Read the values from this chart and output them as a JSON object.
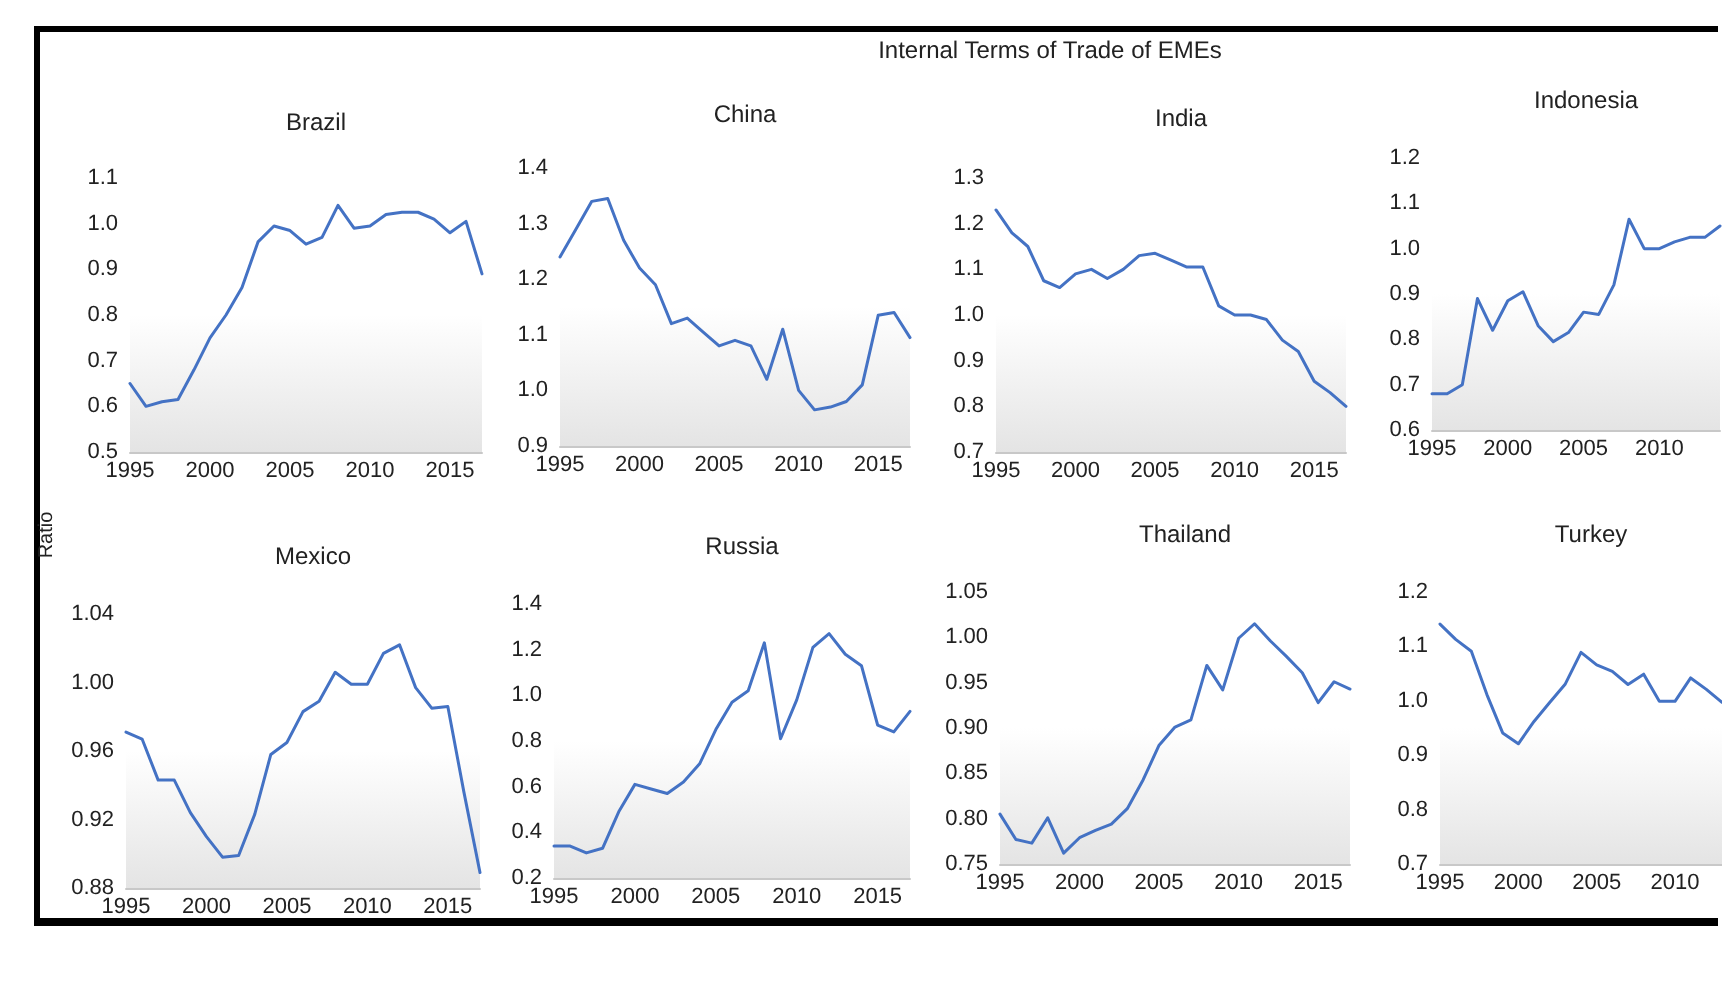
{
  "chart_data": [
    {
      "type": "line",
      "title": "Brazil",
      "ylabel": "Ratio",
      "annotations": [
        "Internal Terms of Trade of EMEs"
      ],
      "x": [
        1995,
        1996,
        1997,
        1998,
        1999,
        2000,
        2001,
        2002,
        2003,
        2004,
        2005,
        2006,
        2007,
        2008,
        2009,
        2010,
        2011,
        2012,
        2013,
        2014,
        2015,
        2016,
        2017
      ],
      "xlim": [
        1995,
        2017
      ],
      "xticks": [
        1995,
        2000,
        2005,
        2010,
        2015
      ],
      "ylim": [
        0.5,
        1.1
      ],
      "yticks": [
        {
          "value": 0.5,
          "label": "0.5"
        },
        {
          "value": 0.6,
          "label": "0.6"
        },
        {
          "value": 0.7,
          "label": "0.7"
        },
        {
          "value": 0.8,
          "label": "0.8"
        },
        {
          "value": 0.9,
          "label": "0.9"
        },
        {
          "value": 1,
          "label": "1.0"
        },
        {
          "value": 1.1,
          "label": "1.1"
        }
      ],
      "series": [
        {
          "color": "#4472c4",
          "values": [
            0.65,
            0.6,
            0.61,
            0.615,
            0.68,
            0.75,
            0.8,
            0.86,
            0.96,
            0.995,
            0.985,
            0.955,
            0.97,
            1.04,
            0.99,
            0.995,
            1.02,
            1.025,
            1.025,
            1.01,
            0.98,
            1.005,
            0.89
          ]
        }
      ]
    },
    {
      "type": "line",
      "title": "China",
      "x": [
        1995,
        1996,
        1997,
        1998,
        1999,
        2000,
        2001,
        2002,
        2003,
        2004,
        2005,
        2006,
        2007,
        2008,
        2009,
        2010,
        2011,
        2012,
        2013,
        2014,
        2015,
        2016,
        2017
      ],
      "xlim": [
        1995,
        2017
      ],
      "xticks": [
        1995,
        2000,
        2005,
        2010,
        2015
      ],
      "ylim": [
        0.9,
        1.4
      ],
      "yticks": [
        {
          "value": 0.9,
          "label": "0.9"
        },
        {
          "value": 1,
          "label": "1.0"
        },
        {
          "value": 1.1,
          "label": "1.1"
        },
        {
          "value": 1.2,
          "label": "1.2"
        },
        {
          "value": 1.3,
          "label": "1.3"
        },
        {
          "value": 1.4,
          "label": "1.4"
        }
      ],
      "series": [
        {
          "color": "#4472c4",
          "values": [
            1.24,
            1.29,
            1.34,
            1.345,
            1.27,
            1.22,
            1.19,
            1.12,
            1.13,
            1.105,
            1.08,
            1.09,
            1.08,
            1.02,
            1.11,
            1.0,
            0.965,
            0.97,
            0.98,
            1.01,
            1.135,
            1.14,
            1.095
          ]
        }
      ]
    },
    {
      "type": "line",
      "title": "India",
      "x": [
        1995,
        1996,
        1997,
        1998,
        1999,
        2000,
        2001,
        2002,
        2003,
        2004,
        2005,
        2006,
        2007,
        2008,
        2009,
        2010,
        2011,
        2012,
        2013,
        2014,
        2015,
        2016,
        2017
      ],
      "xlim": [
        1995,
        2017
      ],
      "xticks": [
        1995,
        2000,
        2005,
        2010,
        2015
      ],
      "ylim": [
        0.7,
        1.3
      ],
      "yticks": [
        {
          "value": 0.7,
          "label": "0.7"
        },
        {
          "value": 0.8,
          "label": "0.8"
        },
        {
          "value": 0.9,
          "label": "0.9"
        },
        {
          "value": 1,
          "label": "1.0"
        },
        {
          "value": 1.1,
          "label": "1.1"
        },
        {
          "value": 1.2,
          "label": "1.2"
        },
        {
          "value": 1.3,
          "label": "1.3"
        }
      ],
      "series": [
        {
          "color": "#4472c4",
          "values": [
            1.23,
            1.18,
            1.15,
            1.075,
            1.06,
            1.09,
            1.1,
            1.08,
            1.1,
            1.13,
            1.135,
            1.12,
            1.105,
            1.105,
            1.02,
            1.0,
            1.0,
            0.99,
            0.945,
            0.92,
            0.855,
            0.83,
            0.8
          ]
        }
      ]
    },
    {
      "type": "line",
      "title": "Indonesia",
      "x": [
        1995,
        1996,
        1997,
        1998,
        1999,
        2000,
        2001,
        2002,
        2003,
        2004,
        2005,
        2006,
        2007,
        2008,
        2009,
        2010,
        2011,
        2012,
        2013,
        2014
      ],
      "xlim": [
        1995,
        2014
      ],
      "xticks": [
        1995,
        2000,
        2005,
        2010
      ],
      "ylim": [
        0.6,
        1.2
      ],
      "yticks": [
        {
          "value": 0.6,
          "label": "0.6"
        },
        {
          "value": 0.7,
          "label": "0.7"
        },
        {
          "value": 0.8,
          "label": "0.8"
        },
        {
          "value": 0.9,
          "label": "0.9"
        },
        {
          "value": 1,
          "label": "1.0"
        },
        {
          "value": 1.1,
          "label": "1.1"
        },
        {
          "value": 1.2,
          "label": "1.2"
        }
      ],
      "series": [
        {
          "color": "#4472c4",
          "values": [
            0.68,
            0.68,
            0.7,
            0.89,
            0.82,
            0.885,
            0.905,
            0.83,
            0.795,
            0.815,
            0.86,
            0.855,
            0.92,
            1.065,
            1.0,
            1.0,
            1.015,
            1.025,
            1.025,
            1.05
          ]
        }
      ]
    },
    {
      "type": "line",
      "title": "Mexico",
      "x": [
        1995,
        1996,
        1997,
        1998,
        1999,
        2000,
        2001,
        2002,
        2003,
        2004,
        2005,
        2006,
        2007,
        2008,
        2009,
        2010,
        2011,
        2012,
        2013,
        2014,
        2015,
        2016,
        2017
      ],
      "xlim": [
        1995,
        2017
      ],
      "xticks": [
        1995,
        2000,
        2005,
        2010,
        2015
      ],
      "ylim": [
        0.88,
        1.04
      ],
      "yticks": [
        {
          "value": 0.88,
          "label": "0.88"
        },
        {
          "value": 0.92,
          "label": "0.92"
        },
        {
          "value": 0.96,
          "label": "0.96"
        },
        {
          "value": 1,
          "label": "1.00"
        },
        {
          "value": 1.04,
          "label": "1.04"
        }
      ],
      "series": [
        {
          "color": "#4472c4",
          "values": [
            0.971,
            0.967,
            0.943,
            0.943,
            0.924,
            0.91,
            0.898,
            0.899,
            0.923,
            0.958,
            0.965,
            0.983,
            0.989,
            1.006,
            0.999,
            0.999,
            1.017,
            1.022,
            0.997,
            0.985,
            0.986,
            0.936,
            0.889
          ]
        }
      ]
    },
    {
      "type": "line",
      "title": "Russia",
      "x": [
        1995,
        1996,
        1997,
        1998,
        1999,
        2000,
        2001,
        2002,
        2003,
        2004,
        2005,
        2006,
        2007,
        2008,
        2009,
        2010,
        2011,
        2012,
        2013,
        2014,
        2015,
        2016,
        2017
      ],
      "xlim": [
        1995,
        2017
      ],
      "xticks": [
        1995,
        2000,
        2005,
        2010,
        2015
      ],
      "ylim": [
        0.2,
        1.4
      ],
      "yticks": [
        {
          "value": 0.2,
          "label": "0.2"
        },
        {
          "value": 0.4,
          "label": "0.4"
        },
        {
          "value": 0.6,
          "label": "0.6"
        },
        {
          "value": 0.8,
          "label": "0.8"
        },
        {
          "value": 1,
          "label": "1.0"
        },
        {
          "value": 1.2,
          "label": "1.2"
        },
        {
          "value": 1.4,
          "label": "1.4"
        }
      ],
      "series": [
        {
          "color": "#4472c4",
          "values": [
            0.34,
            0.34,
            0.31,
            0.33,
            0.49,
            0.61,
            0.59,
            0.57,
            0.62,
            0.7,
            0.85,
            0.97,
            1.02,
            1.23,
            0.81,
            0.98,
            1.21,
            1.27,
            1.18,
            1.13,
            0.87,
            0.84,
            0.93
          ]
        }
      ]
    },
    {
      "type": "line",
      "title": "Thailand",
      "x": [
        1995,
        1996,
        1997,
        1998,
        1999,
        2000,
        2001,
        2002,
        2003,
        2004,
        2005,
        2006,
        2007,
        2008,
        2009,
        2010,
        2011,
        2012,
        2013,
        2014,
        2015,
        2016,
        2017
      ],
      "xlim": [
        1995,
        2017
      ],
      "xticks": [
        1995,
        2000,
        2005,
        2010,
        2015
      ],
      "ylim": [
        0.75,
        1.05
      ],
      "yticks": [
        {
          "value": 0.75,
          "label": "0.75"
        },
        {
          "value": 0.8,
          "label": "0.80"
        },
        {
          "value": 0.85,
          "label": "0.85"
        },
        {
          "value": 0.9,
          "label": "0.90"
        },
        {
          "value": 0.95,
          "label": "0.95"
        },
        {
          "value": 1,
          "label": "1.00"
        },
        {
          "value": 1.05,
          "label": "1.05"
        }
      ],
      "series": [
        {
          "color": "#4472c4",
          "values": [
            0.805,
            0.777,
            0.773,
            0.801,
            0.762,
            0.779,
            0.787,
            0.794,
            0.811,
            0.843,
            0.881,
            0.901,
            0.909,
            0.969,
            0.942,
            0.999,
            1.015,
            0.996,
            0.979,
            0.961,
            0.928,
            0.951,
            0.943
          ]
        }
      ]
    },
    {
      "type": "line",
      "title": "Turkey",
      "x": [
        1995,
        1996,
        1997,
        1998,
        1999,
        2000,
        2001,
        2002,
        2003,
        2004,
        2005,
        2006,
        2007,
        2008,
        2009,
        2010,
        2011,
        2012,
        2013
      ],
      "xlim": [
        1995,
        2013
      ],
      "xticks": [
        1995,
        2000,
        2005,
        2010
      ],
      "ylim": [
        0.7,
        1.2
      ],
      "yticks": [
        {
          "value": 0.7,
          "label": "0.7"
        },
        {
          "value": 0.8,
          "label": "0.8"
        },
        {
          "value": 0.9,
          "label": "0.9"
        },
        {
          "value": 1,
          "label": "1.0"
        },
        {
          "value": 1.1,
          "label": "1.1"
        },
        {
          "value": 1.2,
          "label": "1.2"
        }
      ],
      "series": [
        {
          "color": "#4472c4",
          "values": [
            1.141,
            1.113,
            1.091,
            1.011,
            0.941,
            0.921,
            0.962,
            0.997,
            1.031,
            1.089,
            1.066,
            1.054,
            1.03,
            1.049,
            0.999,
            0.999,
            1.042,
            1.021,
            0.997
          ]
        }
      ]
    }
  ]
}
